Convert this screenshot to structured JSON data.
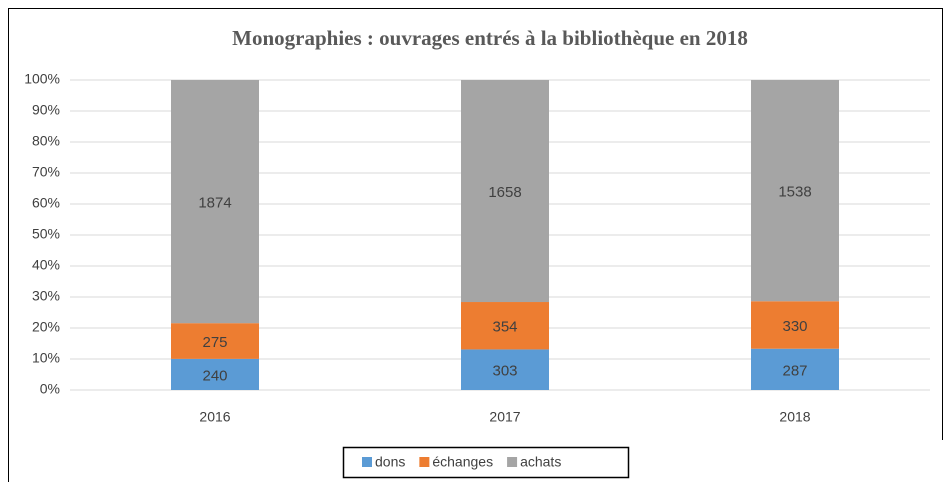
{
  "chart_data": {
    "type": "bar",
    "stacking": "percent",
    "title": "Monographies : ouvrages entrés à la bibliothèque en 2018",
    "categories": [
      "2016",
      "2017",
      "2018"
    ],
    "series": [
      {
        "name": "dons",
        "color": "#5b9bd5",
        "values": [
          240,
          303,
          287
        ]
      },
      {
        "name": "échanges",
        "color": "#ed7d31",
        "values": [
          275,
          354,
          330
        ]
      },
      {
        "name": "achats",
        "color": "#a5a5a5",
        "values": [
          1874,
          1658,
          1538
        ]
      }
    ],
    "ylim": [
      0,
      100
    ],
    "yticks": [
      {
        "value": 0,
        "label": "0%"
      },
      {
        "value": 10,
        "label": "10%"
      },
      {
        "value": 20,
        "label": "20%"
      },
      {
        "value": 30,
        "label": "30%"
      },
      {
        "value": 40,
        "label": "40%"
      },
      {
        "value": 50,
        "label": "50%"
      },
      {
        "value": 60,
        "label": "60%"
      },
      {
        "value": 70,
        "label": "70%"
      },
      {
        "value": 80,
        "label": "80%"
      },
      {
        "value": 90,
        "label": "90%"
      },
      {
        "value": 100,
        "label": "100%"
      }
    ],
    "grid": true,
    "legend": "bottom"
  }
}
